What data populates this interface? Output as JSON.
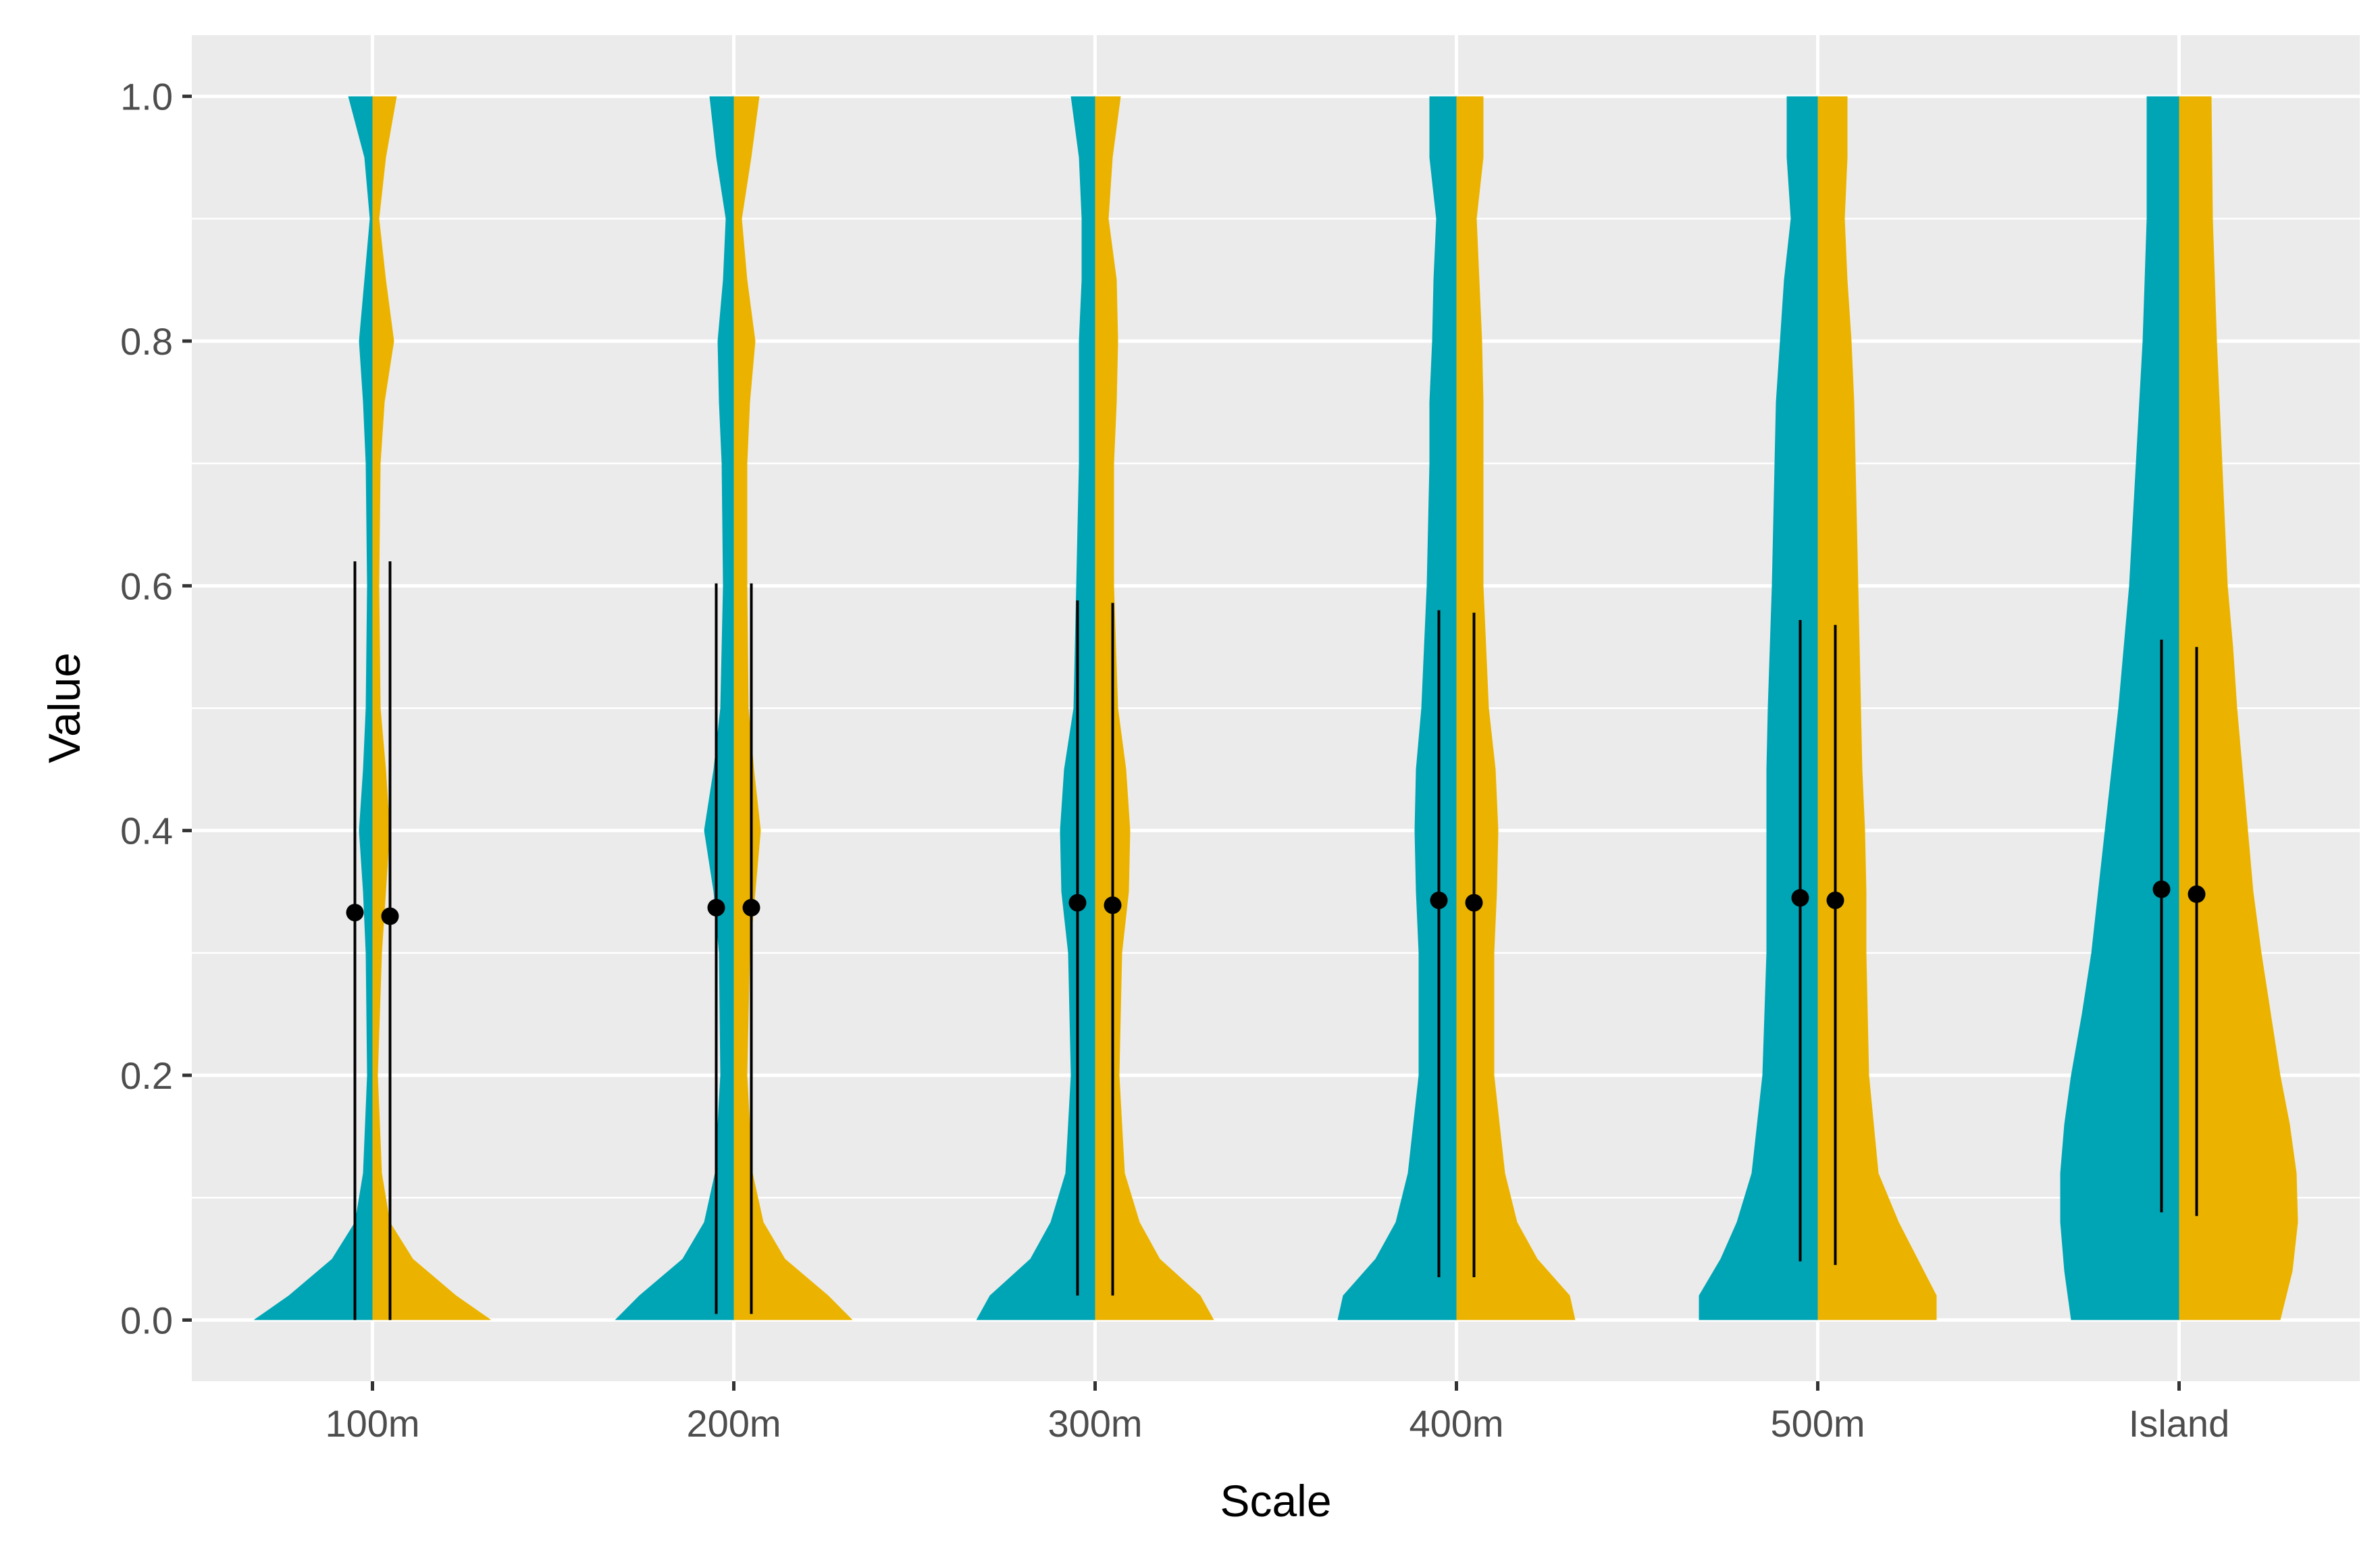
{
  "chart_data": {
    "type": "violin",
    "title": "",
    "xlabel": "Scale",
    "ylabel": "Value",
    "ylim": [
      -0.05,
      1.05
    ],
    "y_ticks": [
      "0.0",
      "0.2",
      "0.4",
      "0.6",
      "0.8",
      "1.0"
    ],
    "y_tick_values": [
      0.0,
      0.2,
      0.4,
      0.6,
      0.8,
      1.0
    ],
    "grid": true,
    "legend": "none",
    "categories": [
      "100m",
      "200m",
      "300m",
      "400m",
      "500m",
      "Island"
    ],
    "colors": {
      "left_half": "#00a5b5",
      "right_half": "#ebb300",
      "panel": "#ebebeb",
      "grid": "#ffffff",
      "summary": "#000000"
    },
    "series": [
      {
        "side": "left",
        "color": "#00a5b5",
        "mean": [
          0.333,
          0.337,
          0.341,
          0.343,
          0.345,
          0.352
        ],
        "interval_low": [
          0.0,
          0.005,
          0.02,
          0.035,
          0.048,
          0.088
        ],
        "interval_high": [
          0.62,
          0.602,
          0.588,
          0.58,
          0.572,
          0.556
        ]
      },
      {
        "side": "right",
        "color": "#ebb300",
        "mean": [
          0.33,
          0.337,
          0.339,
          0.341,
          0.343,
          0.348
        ],
        "interval_low": [
          0.0,
          0.005,
          0.02,
          0.035,
          0.045,
          0.085
        ],
        "interval_high": [
          0.62,
          0.602,
          0.586,
          0.578,
          0.568,
          0.55
        ]
      }
    ],
    "densities": [
      {
        "category": "100m",
        "left": [
          [
            0,
            0.88
          ],
          [
            0.02,
            0.62
          ],
          [
            0.05,
            0.3
          ],
          [
            0.08,
            0.13
          ],
          [
            0.12,
            0.07
          ],
          [
            0.2,
            0.04
          ],
          [
            0.3,
            0.05
          ],
          [
            0.35,
            0.07
          ],
          [
            0.4,
            0.1
          ],
          [
            0.45,
            0.07
          ],
          [
            0.5,
            0.05
          ],
          [
            0.6,
            0.04
          ],
          [
            0.7,
            0.05
          ],
          [
            0.75,
            0.07
          ],
          [
            0.8,
            0.1
          ],
          [
            0.85,
            0.06
          ],
          [
            0.9,
            0.02
          ],
          [
            0.95,
            0.06
          ],
          [
            1.0,
            0.18
          ]
        ],
        "right": [
          [
            0,
            0.88
          ],
          [
            0.02,
            0.62
          ],
          [
            0.05,
            0.3
          ],
          [
            0.08,
            0.13
          ],
          [
            0.12,
            0.07
          ],
          [
            0.2,
            0.04
          ],
          [
            0.3,
            0.07
          ],
          [
            0.35,
            0.1
          ],
          [
            0.4,
            0.13
          ],
          [
            0.45,
            0.1
          ],
          [
            0.5,
            0.06
          ],
          [
            0.6,
            0.05
          ],
          [
            0.7,
            0.06
          ],
          [
            0.75,
            0.09
          ],
          [
            0.8,
            0.16
          ],
          [
            0.85,
            0.1
          ],
          [
            0.9,
            0.05
          ],
          [
            0.95,
            0.1
          ],
          [
            1.0,
            0.18
          ]
        ]
      },
      {
        "category": "200m",
        "left": [
          [
            0,
            0.88
          ],
          [
            0.02,
            0.7
          ],
          [
            0.05,
            0.38
          ],
          [
            0.08,
            0.22
          ],
          [
            0.12,
            0.14
          ],
          [
            0.2,
            0.1
          ],
          [
            0.3,
            0.11
          ],
          [
            0.35,
            0.15
          ],
          [
            0.4,
            0.22
          ],
          [
            0.45,
            0.15
          ],
          [
            0.5,
            0.1
          ],
          [
            0.6,
            0.08
          ],
          [
            0.7,
            0.09
          ],
          [
            0.75,
            0.11
          ],
          [
            0.8,
            0.12
          ],
          [
            0.85,
            0.08
          ],
          [
            0.9,
            0.06
          ],
          [
            0.95,
            0.13
          ],
          [
            1.0,
            0.18
          ]
        ],
        "right": [
          [
            0,
            0.88
          ],
          [
            0.02,
            0.7
          ],
          [
            0.05,
            0.38
          ],
          [
            0.08,
            0.22
          ],
          [
            0.12,
            0.14
          ],
          [
            0.2,
            0.1
          ],
          [
            0.3,
            0.12
          ],
          [
            0.35,
            0.16
          ],
          [
            0.4,
            0.2
          ],
          [
            0.45,
            0.15
          ],
          [
            0.5,
            0.11
          ],
          [
            0.6,
            0.1
          ],
          [
            0.7,
            0.1
          ],
          [
            0.75,
            0.12
          ],
          [
            0.8,
            0.16
          ],
          [
            0.85,
            0.1
          ],
          [
            0.9,
            0.06
          ],
          [
            0.95,
            0.13
          ],
          [
            1.0,
            0.19
          ]
        ]
      },
      {
        "category": "300m",
        "left": [
          [
            0,
            0.88
          ],
          [
            0.02,
            0.78
          ],
          [
            0.05,
            0.48
          ],
          [
            0.08,
            0.33
          ],
          [
            0.12,
            0.22
          ],
          [
            0.2,
            0.18
          ],
          [
            0.3,
            0.2
          ],
          [
            0.35,
            0.25
          ],
          [
            0.4,
            0.26
          ],
          [
            0.45,
            0.23
          ],
          [
            0.5,
            0.16
          ],
          [
            0.6,
            0.14
          ],
          [
            0.7,
            0.12
          ],
          [
            0.75,
            0.12
          ],
          [
            0.8,
            0.12
          ],
          [
            0.85,
            0.1
          ],
          [
            0.9,
            0.1
          ],
          [
            0.95,
            0.12
          ],
          [
            1.0,
            0.18
          ]
        ],
        "right": [
          [
            0,
            0.88
          ],
          [
            0.02,
            0.78
          ],
          [
            0.05,
            0.48
          ],
          [
            0.08,
            0.33
          ],
          [
            0.12,
            0.22
          ],
          [
            0.2,
            0.18
          ],
          [
            0.3,
            0.2
          ],
          [
            0.35,
            0.25
          ],
          [
            0.4,
            0.26
          ],
          [
            0.45,
            0.23
          ],
          [
            0.5,
            0.17
          ],
          [
            0.6,
            0.14
          ],
          [
            0.7,
            0.14
          ],
          [
            0.75,
            0.16
          ],
          [
            0.8,
            0.17
          ],
          [
            0.85,
            0.16
          ],
          [
            0.9,
            0.1
          ],
          [
            0.95,
            0.13
          ],
          [
            1.0,
            0.19
          ]
        ]
      },
      {
        "category": "400m",
        "left": [
          [
            0,
            0.88
          ],
          [
            0.02,
            0.84
          ],
          [
            0.05,
            0.6
          ],
          [
            0.08,
            0.45
          ],
          [
            0.12,
            0.36
          ],
          [
            0.2,
            0.28
          ],
          [
            0.3,
            0.28
          ],
          [
            0.35,
            0.3
          ],
          [
            0.4,
            0.31
          ],
          [
            0.45,
            0.3
          ],
          [
            0.5,
            0.26
          ],
          [
            0.6,
            0.22
          ],
          [
            0.7,
            0.2
          ],
          [
            0.75,
            0.2
          ],
          [
            0.8,
            0.18
          ],
          [
            0.85,
            0.17
          ],
          [
            0.9,
            0.15
          ],
          [
            0.95,
            0.2
          ],
          [
            1.0,
            0.2
          ]
        ],
        "right": [
          [
            0,
            0.88
          ],
          [
            0.02,
            0.84
          ],
          [
            0.05,
            0.6
          ],
          [
            0.08,
            0.45
          ],
          [
            0.12,
            0.36
          ],
          [
            0.2,
            0.28
          ],
          [
            0.3,
            0.28
          ],
          [
            0.35,
            0.3
          ],
          [
            0.4,
            0.31
          ],
          [
            0.45,
            0.29
          ],
          [
            0.5,
            0.24
          ],
          [
            0.6,
            0.2
          ],
          [
            0.7,
            0.2
          ],
          [
            0.75,
            0.2
          ],
          [
            0.8,
            0.19
          ],
          [
            0.85,
            0.17
          ],
          [
            0.9,
            0.15
          ],
          [
            0.95,
            0.2
          ],
          [
            1.0,
            0.2
          ]
        ]
      },
      {
        "category": "500m",
        "left": [
          [
            0,
            0.88
          ],
          [
            0.02,
            0.88
          ],
          [
            0.05,
            0.72
          ],
          [
            0.08,
            0.6
          ],
          [
            0.12,
            0.49
          ],
          [
            0.2,
            0.41
          ],
          [
            0.3,
            0.38
          ],
          [
            0.35,
            0.38
          ],
          [
            0.4,
            0.38
          ],
          [
            0.45,
            0.38
          ],
          [
            0.5,
            0.37
          ],
          [
            0.6,
            0.34
          ],
          [
            0.7,
            0.32
          ],
          [
            0.75,
            0.31
          ],
          [
            0.8,
            0.28
          ],
          [
            0.85,
            0.25
          ],
          [
            0.9,
            0.2
          ],
          [
            0.95,
            0.23
          ],
          [
            1.0,
            0.23
          ]
        ],
        "right": [
          [
            0,
            0.88
          ],
          [
            0.02,
            0.88
          ],
          [
            0.05,
            0.74
          ],
          [
            0.08,
            0.6
          ],
          [
            0.12,
            0.45
          ],
          [
            0.2,
            0.38
          ],
          [
            0.3,
            0.36
          ],
          [
            0.35,
            0.36
          ],
          [
            0.4,
            0.35
          ],
          [
            0.45,
            0.33
          ],
          [
            0.5,
            0.32
          ],
          [
            0.6,
            0.3
          ],
          [
            0.7,
            0.28
          ],
          [
            0.75,
            0.27
          ],
          [
            0.8,
            0.25
          ],
          [
            0.85,
            0.22
          ],
          [
            0.9,
            0.2
          ],
          [
            0.95,
            0.22
          ],
          [
            1.0,
            0.22
          ]
        ]
      },
      {
        "category": "Island",
        "left": [
          [
            0,
            0.8
          ],
          [
            0.04,
            0.85
          ],
          [
            0.08,
            0.88
          ],
          [
            0.12,
            0.88
          ],
          [
            0.16,
            0.85
          ],
          [
            0.2,
            0.8
          ],
          [
            0.25,
            0.72
          ],
          [
            0.3,
            0.65
          ],
          [
            0.35,
            0.6
          ],
          [
            0.4,
            0.55
          ],
          [
            0.45,
            0.5
          ],
          [
            0.5,
            0.45
          ],
          [
            0.55,
            0.41
          ],
          [
            0.6,
            0.37
          ],
          [
            0.7,
            0.32
          ],
          [
            0.8,
            0.27
          ],
          [
            0.9,
            0.24
          ],
          [
            1.0,
            0.24
          ]
        ],
        "right": [
          [
            0,
            0.75
          ],
          [
            0.04,
            0.84
          ],
          [
            0.08,
            0.88
          ],
          [
            0.12,
            0.87
          ],
          [
            0.16,
            0.82
          ],
          [
            0.2,
            0.75
          ],
          [
            0.25,
            0.68
          ],
          [
            0.3,
            0.61
          ],
          [
            0.35,
            0.55
          ],
          [
            0.4,
            0.51
          ],
          [
            0.45,
            0.47
          ],
          [
            0.5,
            0.43
          ],
          [
            0.55,
            0.4
          ],
          [
            0.6,
            0.36
          ],
          [
            0.7,
            0.32
          ],
          [
            0.8,
            0.28
          ],
          [
            0.9,
            0.25
          ],
          [
            1.0,
            0.24
          ]
        ]
      }
    ]
  }
}
